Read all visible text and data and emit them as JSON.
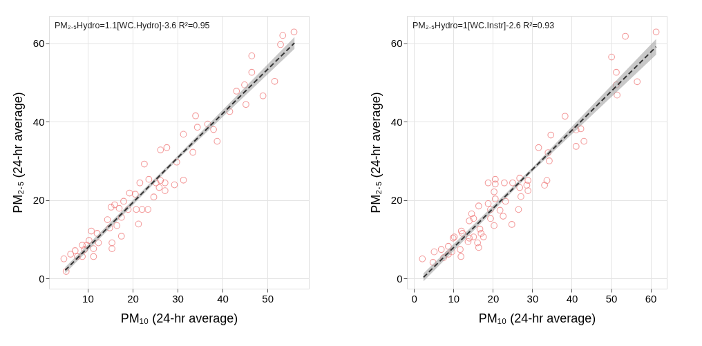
{
  "chart_data": [
    {
      "type": "scatter",
      "xlabel": "PM₁₀ (24-hr average)",
      "ylabel": "PM₂.₅ (24-hr average)",
      "annotations": [
        "PM₂.₅Hydro=1.1[WC.Hydro]-3.6 R²=0.95"
      ],
      "xlim": [
        1.4,
        59.2
      ],
      "ylim": [
        -2.6,
        67
      ],
      "xticks": [
        10,
        20,
        30,
        40,
        50
      ],
      "yticks": [
        0,
        20,
        40,
        60
      ],
      "grid": true,
      "series": [
        {
          "marker": "circle",
          "color": "#ee7070",
          "x": [
            55.9,
            53.4,
            52.9,
            46.5,
            46.5,
            51.6,
            44.9,
            43.1,
            49.0,
            45.2,
            41.6,
            34.0,
            34.4,
            36.7,
            38.0,
            38.8,
            31.3,
            27.6,
            26.2,
            33.4,
            29.8,
            22.6,
            31.3,
            29.3,
            21.6,
            23.6,
            25.2,
            26.2,
            27.2,
            25.9,
            27.2,
            24.7,
            19.3,
            20.6,
            18.0,
            16.0,
            15.2,
            17.0,
            19.0,
            20.8,
            22.1,
            23.4,
            14.4,
            17.5,
            16.5,
            21.3,
            14.9,
            10.8,
            12.1,
            10.3,
            12.4,
            15.4,
            17.5,
            15.4,
            8.8,
            9.3,
            11.3,
            11.3,
            7.2,
            6.2,
            4.7,
            5.2,
            7.7,
            8.8,
            9.8
          ],
          "values": [
            62.9,
            62.0,
            59.7,
            56.8,
            52.6,
            50.3,
            49.4,
            47.8,
            46.6,
            44.4,
            42.6,
            41.5,
            38.6,
            39.4,
            38.0,
            35.0,
            36.8,
            33.4,
            32.8,
            32.2,
            29.7,
            29.2,
            25.1,
            23.9,
            24.4,
            25.3,
            24.4,
            25.0,
            24.4,
            23.2,
            22.4,
            20.8,
            21.8,
            21.5,
            19.7,
            18.8,
            18.2,
            17.9,
            17.6,
            17.6,
            17.6,
            17.6,
            15.0,
            15.6,
            13.5,
            13.9,
            12.9,
            12.1,
            11.5,
            9.7,
            9.1,
            9.1,
            10.8,
            7.6,
            8.5,
            7.4,
            7.6,
            5.6,
            7.1,
            6.2,
            5.0,
            1.8,
            5.6,
            5.6,
            8.5
          ]
        },
        {
          "type": "line",
          "color": "#333333",
          "line_style": "dashed",
          "x": [
            5,
            30,
            56
          ],
          "values": [
            2.1,
            30.8,
            60.1
          ],
          "lower": [
            1.3,
            30.3,
            58.6
          ],
          "upper": [
            2.9,
            31.3,
            61.6
          ]
        }
      ]
    },
    {
      "type": "scatter",
      "xlabel": "PM₁₀ (24-hr average)",
      "ylabel": "PM₂.₅ (24-hr average)",
      "annotations": [
        "PM₂.₅Hydro=1[WC.Instr]-2.6 R²=0.93"
      ],
      "xlim": [
        -1.8,
        64.1
      ],
      "ylim": [
        -2.6,
        67
      ],
      "xticks": [
        0,
        10,
        20,
        30,
        40,
        50,
        60
      ],
      "yticks": [
        0,
        20,
        40,
        60
      ],
      "grid": true,
      "series": [
        {
          "marker": "circle",
          "color": "#ee7070",
          "x": [
            61.4,
            53.6,
            50.1,
            51.3,
            56.6,
            51.3,
            51.5,
            38.3,
            42.3,
            41.1,
            43.1,
            41.1,
            34.7,
            31.6,
            34.0,
            34.3,
            33.7,
            33.1,
            26.8,
            28.9,
            28.6,
            28.9,
            26.8,
            27.1,
            25.0,
            22.9,
            20.6,
            18.8,
            20.6,
            20.3,
            20.6,
            23.2,
            18.8,
            16.4,
            19.4,
            21.8,
            22.6,
            19.4,
            26.5,
            24.8,
            20.3,
            14.6,
            15.1,
            14.0,
            16.7,
            17.0,
            15.1,
            17.6,
            16.1,
            16.4,
            12.0,
            12.3,
            10.2,
            9.9,
            14.0,
            13.7,
            11.7,
            11.9,
            8.7,
            6.9,
            5.1,
            8.7,
            7.5,
            4.8,
            2.1,
            9.6
          ],
          "values": [
            62.9,
            61.8,
            56.5,
            52.6,
            50.2,
            49.4,
            46.8,
            41.4,
            38.2,
            37.9,
            35.0,
            33.7,
            36.6,
            33.4,
            32.1,
            30.0,
            25.0,
            23.8,
            25.6,
            25.0,
            23.8,
            22.4,
            23.2,
            20.9,
            24.4,
            24.4,
            25.3,
            24.4,
            24.1,
            22.1,
            20.3,
            19.7,
            19.1,
            18.5,
            17.6,
            17.4,
            15.9,
            15.3,
            17.6,
            13.8,
            13.5,
            16.5,
            15.3,
            14.7,
            12.6,
            11.5,
            10.6,
            10.6,
            9.1,
            7.9,
            12.1,
            11.5,
            10.6,
            10.3,
            10.3,
            9.4,
            7.4,
            5.6,
            8.2,
            7.4,
            6.8,
            6.2,
            5.3,
            4.1,
            5.0,
            6.8
          ]
        },
        {
          "type": "line",
          "color": "#333333",
          "line_style": "dashed",
          "x": [
            2.4,
            30,
            61.4
          ],
          "values": [
            0.3,
            27.8,
            59.1
          ],
          "lower": [
            -0.7,
            27.3,
            57.1
          ],
          "upper": [
            1.3,
            28.3,
            61.1
          ]
        }
      ]
    }
  ]
}
